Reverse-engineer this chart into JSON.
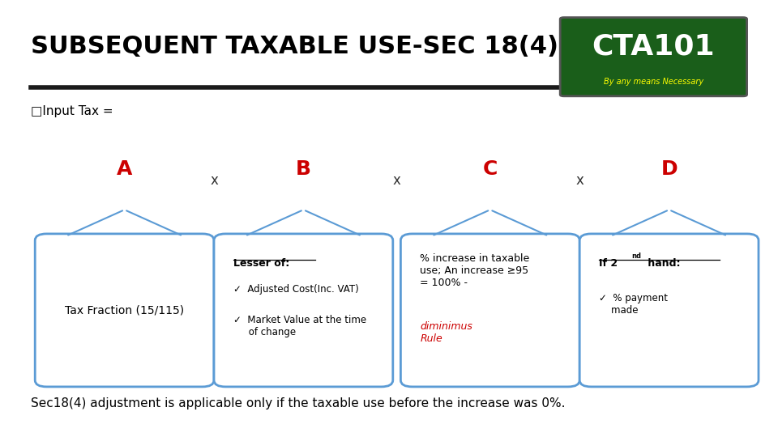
{
  "title": "SUBSEQUENT TAXABLE USE-SEC 18(4)",
  "subtitle": "□Input Tax =",
  "background_color": "#ffffff",
  "title_color": "#000000",
  "title_fontsize": 22,
  "underline_color": "#1a1a1a",
  "labels_A_B_C_D": [
    "A",
    "B",
    "C",
    "D"
  ],
  "label_color": "#cc0000",
  "box_border_color": "#5b9bd5",
  "box_fill_color": "#ffffff",
  "connector_color": "#5b9bd5",
  "box_A_text": "Tax Fraction (15/115)",
  "box_B_title": "Lesser of:",
  "box_B_line1": "✓  Adjusted Cost(Inc. VAT)",
  "box_B_line2": "✓  Market Value at the time\n     of change",
  "box_C_text": "% increase in taxable\nuse; An increase ≥95\n= 100% - ",
  "box_C_italic_red": "diminimus\nRule",
  "box_D_title_start": "If 2",
  "box_D_title_super": "nd",
  "box_D_title_end": " hand:",
  "box_D_line1": "✓  % payment\n    made",
  "footer": "Sec18(4) adjustment is applicable only if the taxable use before the increase was 0%.",
  "footer_fontsize": 11,
  "cta_box_color": "#1a5e1a",
  "cta_text_color": "#ffffff",
  "cta_sub_color": "#ffff00"
}
